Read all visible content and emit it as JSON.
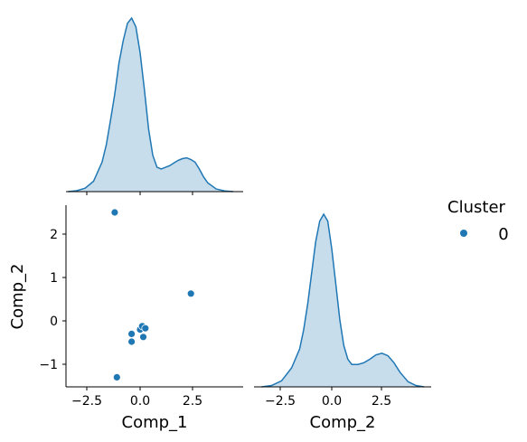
{
  "chart_data": {
    "type": "pairplot",
    "variables": [
      "Comp_1",
      "Comp_2"
    ],
    "hue": "Cluster",
    "legend": {
      "title": "Cluster",
      "entries": [
        {
          "label": "0",
          "color": "#1f77b4"
        }
      ],
      "placement": "right"
    },
    "colors": {
      "series": "#1f77b4",
      "fill": "#1f77b4",
      "fill_opacity": 0.25
    },
    "x_ticks": [
      "−2.5",
      "0.0",
      "2.5"
    ],
    "y_ticks": [
      "2",
      "1",
      "0",
      "−1"
    ],
    "kde_comp1": {
      "type": "area",
      "x": [
        -3.4,
        -3.0,
        -2.6,
        -2.2,
        -1.8,
        -1.6,
        -1.4,
        -1.2,
        -1.0,
        -0.8,
        -0.6,
        -0.4,
        -0.2,
        0.0,
        0.2,
        0.4,
        0.6,
        0.8,
        1.0,
        1.2,
        1.4,
        1.6,
        1.8,
        2.0,
        2.2,
        2.4,
        2.6,
        2.8,
        3.0,
        3.2,
        3.6,
        4.0,
        4.4
      ],
      "density": [
        0.0,
        0.005,
        0.02,
        0.06,
        0.17,
        0.27,
        0.41,
        0.56,
        0.74,
        0.87,
        0.97,
        1.0,
        0.95,
        0.8,
        0.59,
        0.36,
        0.21,
        0.14,
        0.13,
        0.14,
        0.15,
        0.165,
        0.18,
        0.19,
        0.195,
        0.185,
        0.17,
        0.13,
        0.085,
        0.05,
        0.015,
        0.004,
        0.0
      ]
    },
    "kde_comp2": {
      "type": "area",
      "x": [
        -3.5,
        -3.0,
        -2.5,
        -2.0,
        -1.6,
        -1.4,
        -1.2,
        -1.0,
        -0.8,
        -0.6,
        -0.4,
        -0.2,
        0.0,
        0.2,
        0.4,
        0.6,
        0.8,
        1.0,
        1.3,
        1.6,
        1.9,
        2.2,
        2.5,
        2.8,
        3.1,
        3.4,
        3.8,
        4.2,
        4.6
      ],
      "density": [
        0.0,
        0.008,
        0.035,
        0.11,
        0.22,
        0.33,
        0.48,
        0.66,
        0.84,
        0.96,
        1.0,
        0.96,
        0.8,
        0.6,
        0.39,
        0.24,
        0.16,
        0.13,
        0.13,
        0.14,
        0.16,
        0.185,
        0.195,
        0.18,
        0.14,
        0.085,
        0.03,
        0.008,
        0.0
      ]
    },
    "scatter": {
      "type": "scatter",
      "xlabel": "Comp_1",
      "ylabel": "Comp_2",
      "xlim": [
        -3.7,
        4.8
      ],
      "ylim": [
        -1.5,
        2.7
      ],
      "points": [
        {
          "x": -1.2,
          "y": 2.5
        },
        {
          "x": 2.4,
          "y": 0.63
        },
        {
          "x": -0.4,
          "y": -0.3
        },
        {
          "x": -0.4,
          "y": -0.48
        },
        {
          "x": 0.0,
          "y": -0.2
        },
        {
          "x": 0.1,
          "y": -0.12
        },
        {
          "x": 0.25,
          "y": -0.17
        },
        {
          "x": 0.15,
          "y": -0.37
        },
        {
          "x": -1.1,
          "y": -1.3
        }
      ]
    },
    "diag2": {
      "xlabel": "Comp_2",
      "xlim": [
        -3.7,
        4.8
      ]
    }
  }
}
